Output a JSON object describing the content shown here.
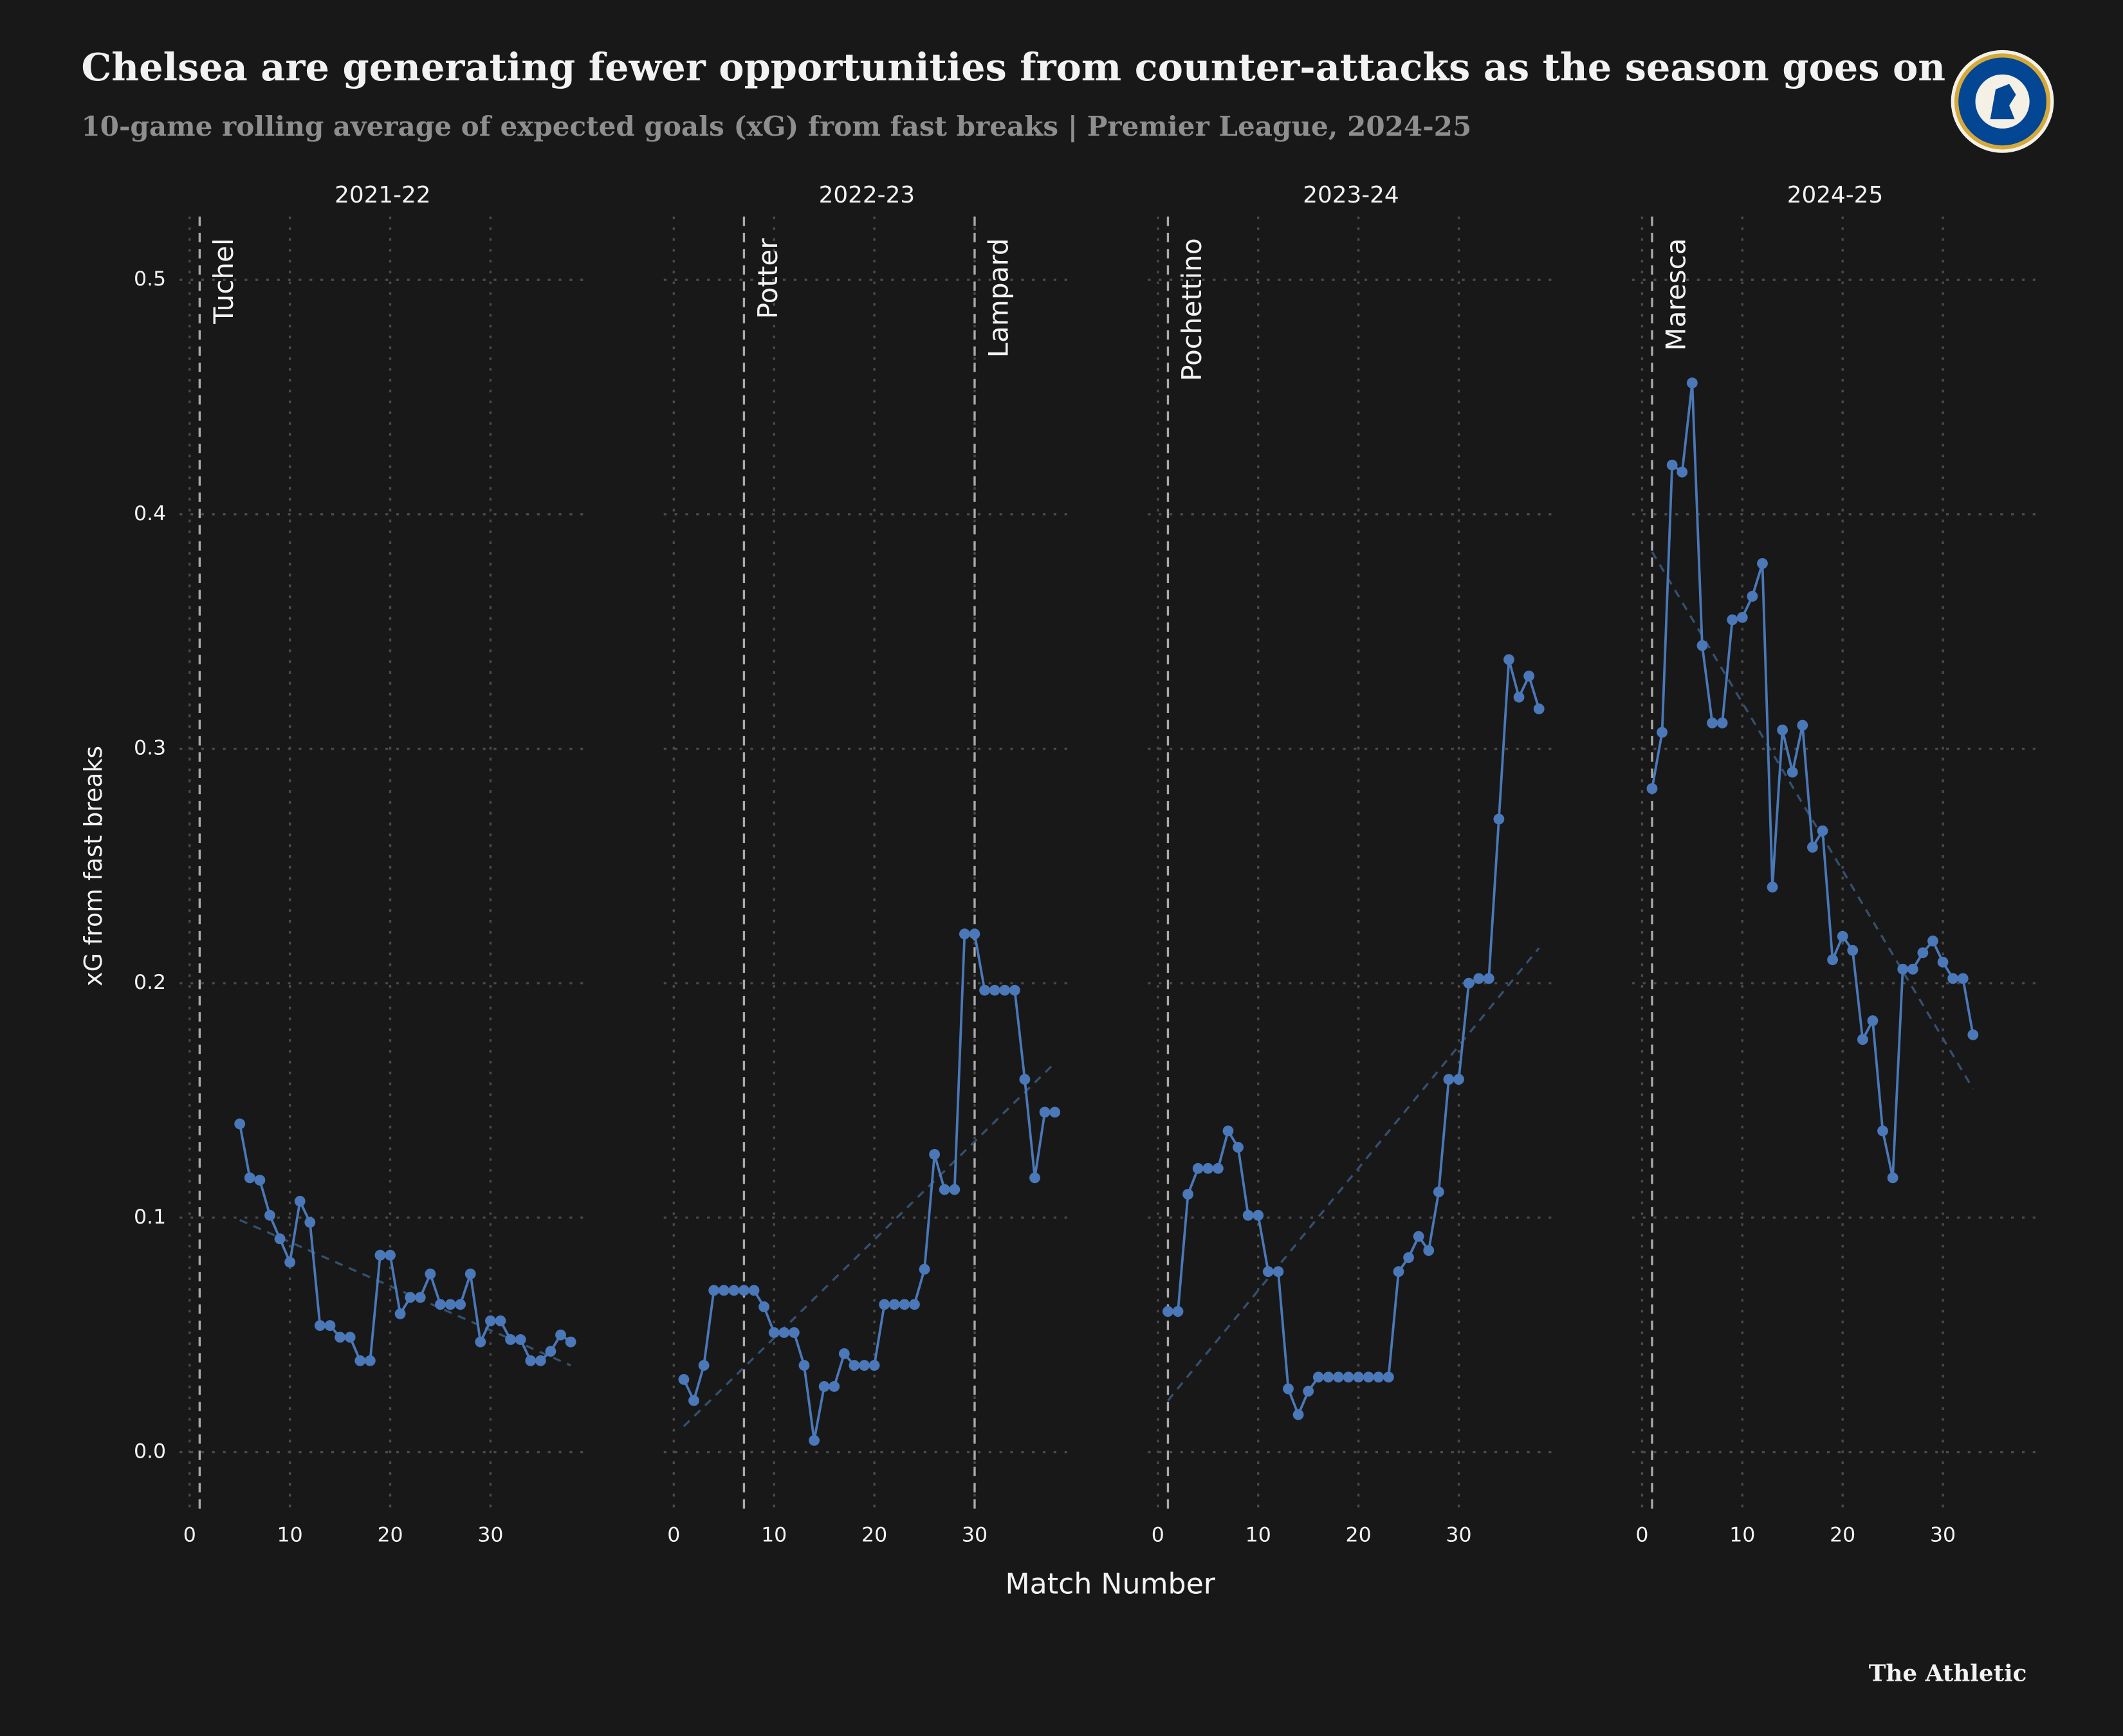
{
  "title": "Chelsea are generating fewer opportunities from counter-attacks as the season goes on",
  "subtitle": "10-game rolling average of expected goals (xG) from fast breaks | Premier League, 2024-25",
  "x_label": "Match Number",
  "y_label": "xG from fast breaks",
  "source": "The Athletic",
  "chart_data": [
    {
      "type": "line",
      "title": "2021-22",
      "grid": true,
      "xlim": [
        -1,
        39.5
      ],
      "xticks": [
        0,
        10,
        20,
        30
      ],
      "ylim": [
        -0.027,
        0.527
      ],
      "yticks": [
        {
          "value": 0,
          "label": "0.0"
        },
        0.1,
        0.2,
        0.3,
        0.4,
        0.5
      ],
      "x": [
        5,
        6,
        7,
        8,
        9,
        10,
        11,
        12,
        13,
        14,
        15,
        16,
        17,
        18,
        19,
        20,
        21,
        22,
        23,
        24,
        25,
        26,
        27,
        28,
        29,
        30,
        31,
        32,
        33,
        34,
        35,
        36,
        37,
        38
      ],
      "series": [
        {
          "color": "#4a78b8",
          "values": [
            0.14,
            0.117,
            0.116,
            0.101,
            0.091,
            0.081,
            0.107,
            0.098,
            0.054,
            0.054,
            0.049,
            0.049,
            0.039,
            0.039,
            0.084,
            0.084,
            0.059,
            0.066,
            0.066,
            0.076,
            0.063,
            0.063,
            0.063,
            0.076,
            0.047,
            0.056,
            0.056,
            0.048,
            0.048,
            0.039,
            0.039,
            0.043,
            0.05,
            0.047
          ]
        }
      ],
      "trend": {
        "color": "#34506f",
        "x": [
          5,
          38
        ],
        "values": [
          0.099,
          0.037
        ]
      },
      "annotations": [
        {
          "x": 1,
          "label": "Tuchel"
        }
      ]
    },
    {
      "type": "line",
      "title": "2022-23",
      "grid": true,
      "xlim": [
        -1,
        39.5
      ],
      "xticks": [
        0,
        10,
        20,
        30
      ],
      "x": [
        1,
        2,
        3,
        4,
        5,
        6,
        7,
        8,
        9,
        10,
        11,
        12,
        13,
        14,
        15,
        16,
        17,
        18,
        19,
        20,
        21,
        22,
        23,
        24,
        25,
        26,
        27,
        28,
        29,
        30,
        31,
        32,
        33,
        34,
        35,
        36,
        37,
        38
      ],
      "series": [
        {
          "color": "#4a78b8",
          "values": [
            0.031,
            0.022,
            0.037,
            0.069,
            0.069,
            0.069,
            0.069,
            0.069,
            0.062,
            0.051,
            0.051,
            0.051,
            0.037,
            0.005,
            0.028,
            0.028,
            0.042,
            0.037,
            0.037,
            0.037,
            0.063,
            0.063,
            0.063,
            0.063,
            0.078,
            0.127,
            0.112,
            0.112,
            0.221,
            0.221,
            0.197,
            0.197,
            0.197,
            0.197,
            0.159,
            0.117,
            0.145,
            0.145
          ]
        }
      ],
      "trend": {
        "color": "#34506f",
        "x": [
          1,
          38
        ],
        "values": [
          0.011,
          0.166
        ]
      },
      "annotations": [
        {
          "x": 7,
          "label": "Potter"
        },
        {
          "x": 30,
          "label": "Lampard"
        }
      ]
    },
    {
      "type": "line",
      "title": "2023-24",
      "grid": true,
      "xlim": [
        -1,
        39.5
      ],
      "xticks": [
        0,
        10,
        20,
        30
      ],
      "x": [
        1,
        2,
        3,
        4,
        5,
        6,
        7,
        8,
        9,
        10,
        11,
        12,
        13,
        14,
        15,
        16,
        17,
        18,
        19,
        20,
        21,
        22,
        23,
        24,
        25,
        26,
        27,
        28,
        29,
        30,
        31,
        32,
        33,
        34,
        35,
        36,
        37,
        38
      ],
      "series": [
        {
          "color": "#4a78b8",
          "values": [
            0.06,
            0.06,
            0.11,
            0.121,
            0.121,
            0.121,
            0.137,
            0.13,
            0.101,
            0.101,
            0.077,
            0.077,
            0.027,
            0.016,
            0.026,
            0.032,
            0.032,
            0.032,
            0.032,
            0.032,
            0.032,
            0.032,
            0.032,
            0.077,
            0.083,
            0.092,
            0.086,
            0.111,
            0.159,
            0.159,
            0.2,
            0.202,
            0.202,
            0.27,
            0.338,
            0.322,
            0.331,
            0.317
          ]
        }
      ],
      "trend": {
        "color": "#34506f",
        "x": [
          1,
          38
        ],
        "values": [
          0.022,
          0.215
        ]
      },
      "annotations": [
        {
          "x": 1,
          "label": "Pochettino"
        }
      ]
    },
    {
      "type": "line",
      "title": "2024-25",
      "grid": true,
      "xlim": [
        -1,
        39.5
      ],
      "xticks": [
        0,
        10,
        20,
        30
      ],
      "x": [
        1,
        2,
        3,
        4,
        5,
        6,
        7,
        8,
        9,
        10,
        11,
        12,
        13,
        14,
        15,
        16,
        17,
        18,
        19,
        20,
        21,
        22,
        23,
        24,
        25,
        26,
        27,
        28,
        29,
        30,
        31,
        32,
        33
      ],
      "series": [
        {
          "color": "#4a78b8",
          "values": [
            0.283,
            0.307,
            0.421,
            0.418,
            0.456,
            0.344,
            0.311,
            0.311,
            0.355,
            0.356,
            0.365,
            0.379,
            0.241,
            0.308,
            0.29,
            0.31,
            0.258,
            0.265,
            0.21,
            0.22,
            0.214,
            0.176,
            0.184,
            0.137,
            0.117,
            0.206,
            0.206,
            0.213,
            0.218,
            0.209,
            0.202,
            0.202,
            0.178
          ]
        }
      ],
      "trend": {
        "color": "#34506f",
        "x": [
          1,
          33
        ],
        "values": [
          0.384,
          0.155
        ]
      },
      "annotations": [
        {
          "x": 1,
          "label": "Maresca"
        }
      ]
    }
  ]
}
